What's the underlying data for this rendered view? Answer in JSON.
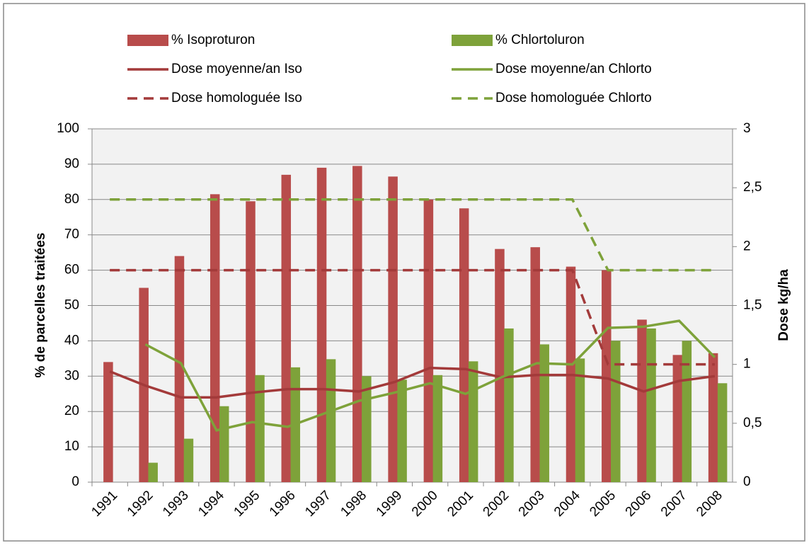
{
  "chart_data": {
    "type": "bar",
    "categories": [
      "1991",
      "1992",
      "1993",
      "1994",
      "1995",
      "1996",
      "1997",
      "1998",
      "1999",
      "2000",
      "2001",
      "2002",
      "2003",
      "2004",
      "2005",
      "2006",
      "2007",
      "2008"
    ],
    "series": [
      {
        "name": "% Isoproturon",
        "type": "bar",
        "color": "#b84c4b",
        "values": [
          34,
          55,
          64,
          81.5,
          79.5,
          87,
          89,
          89.5,
          86.5,
          80,
          77.5,
          66,
          66.5,
          61,
          60,
          46,
          36,
          36.5
        ]
      },
      {
        "name": "% Chlortoluron",
        "type": "bar",
        "color": "#7ea23a",
        "values": [
          null,
          5.5,
          12.3,
          21.5,
          30.3,
          32.5,
          34.8,
          30,
          29,
          30.3,
          34.2,
          43.5,
          39,
          35,
          40,
          43.5,
          40,
          28
        ]
      },
      {
        "name": "Dose moyenne/an Iso",
        "type": "line",
        "axis": "y2",
        "color": "#a33a3a",
        "line_style": "solid",
        "values": [
          0.94,
          0.82,
          0.72,
          0.72,
          0.76,
          0.79,
          0.79,
          0.77,
          0.85,
          0.97,
          0.96,
          0.89,
          0.91,
          0.91,
          0.88,
          0.77,
          0.86,
          0.9
        ]
      },
      {
        "name": "Dose moyenne/an Chlorto",
        "type": "line",
        "axis": "y2",
        "color": "#7ea23a",
        "line_style": "solid",
        "values": [
          null,
          1.17,
          1.01,
          0.44,
          0.51,
          0.47,
          0.58,
          0.69,
          0.76,
          0.84,
          0.75,
          0.89,
          1.01,
          1.0,
          1.31,
          1.32,
          1.37,
          1.06
        ]
      },
      {
        "name": "Dose homologuée Iso",
        "type": "line",
        "axis": "y2",
        "color": "#a33a3a",
        "line_style": "dashed",
        "values": [
          1.8,
          1.8,
          1.8,
          1.8,
          1.8,
          1.8,
          1.8,
          1.8,
          1.8,
          1.8,
          1.8,
          1.8,
          1.8,
          1.8,
          1,
          1,
          1,
          1
        ]
      },
      {
        "name": "Dose homologuée Chlorto",
        "type": "line",
        "axis": "y2",
        "color": "#7ea23a",
        "line_style": "dashed",
        "values": [
          2.4,
          2.4,
          2.4,
          2.4,
          2.4,
          2.4,
          2.4,
          2.4,
          2.4,
          2.4,
          2.4,
          2.4,
          2.4,
          2.4,
          1.8,
          1.8,
          1.8,
          1.8
        ]
      }
    ],
    "y_label": "% de parcelles traitées",
    "y2_label": "Dose kg/ha",
    "ylim": [
      0,
      100
    ],
    "yticks": [
      0,
      10,
      20,
      30,
      40,
      50,
      60,
      70,
      80,
      90,
      100
    ],
    "y2lim": [
      0,
      3
    ],
    "y2ticks": [
      0,
      {
        "value": 0.5,
        "label": "0,5"
      },
      1,
      {
        "value": 1.5,
        "label": "1,5"
      },
      2,
      {
        "value": 2.5,
        "label": "2,5"
      },
      3
    ],
    "grid": true,
    "legend": "top"
  }
}
